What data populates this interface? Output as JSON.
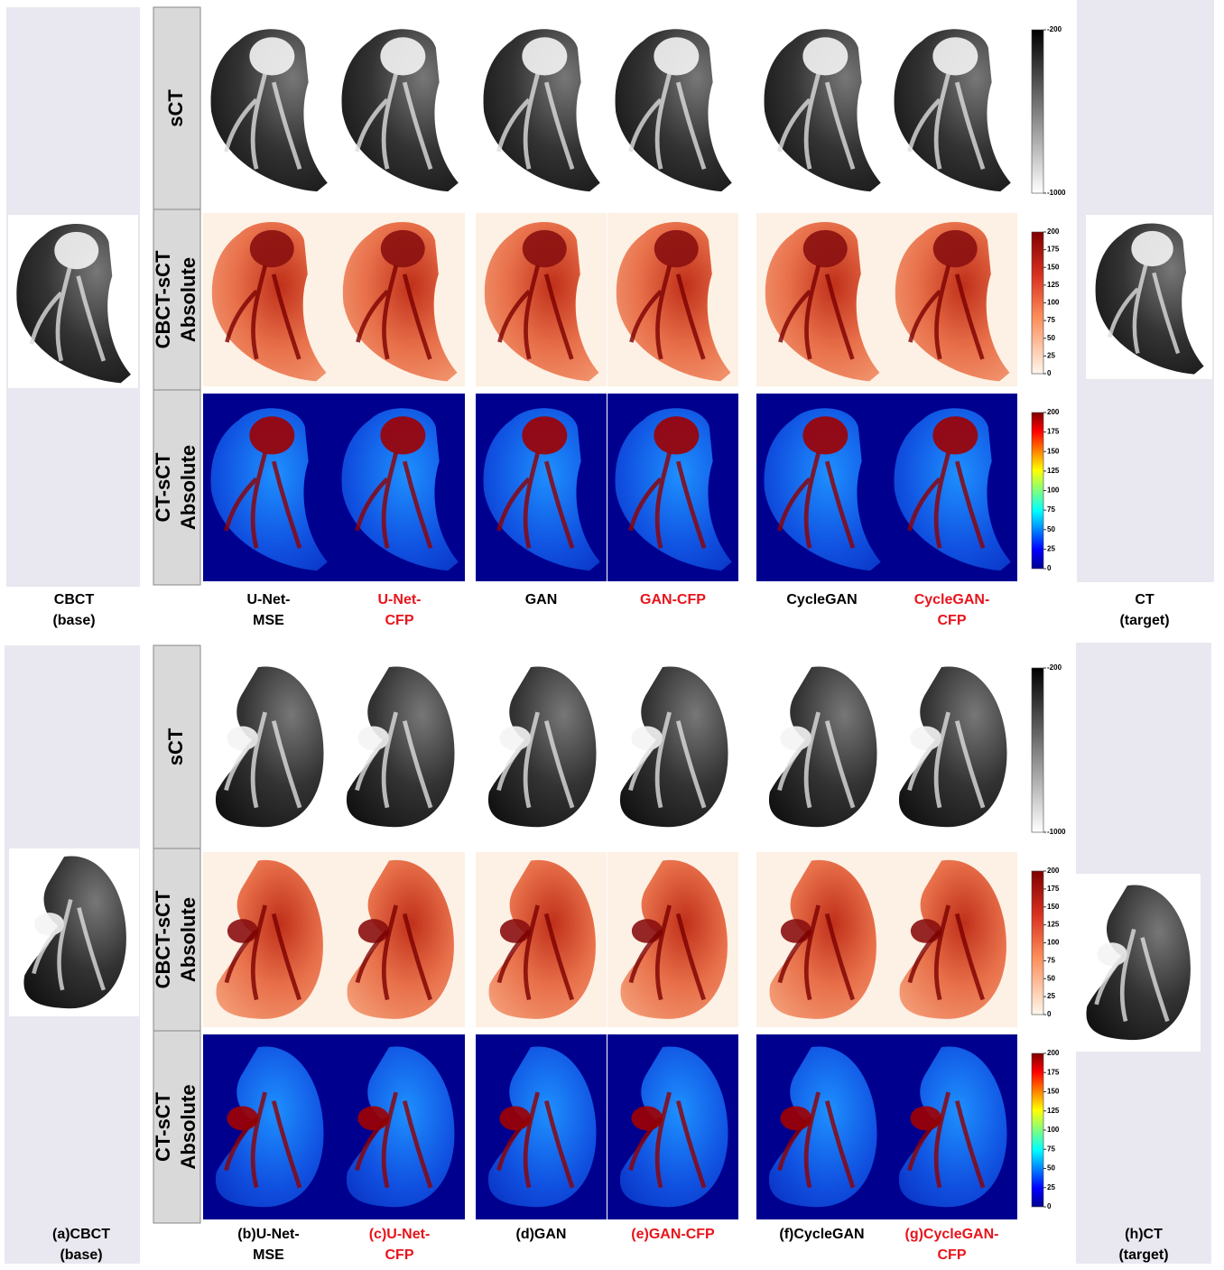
{
  "panels": [
    {
      "base": [
        "CBCT",
        "(base)"
      ],
      "target": [
        "CT",
        "(target)"
      ],
      "rows": [
        [
          "sCT"
        ],
        [
          "CBCT-sCT",
          "Absolute"
        ],
        [
          "CT-sCT",
          "Absolute"
        ]
      ],
      "methods": [
        {
          "lines": [
            "U-Net-",
            "MSE"
          ],
          "color": "#000000"
        },
        {
          "lines": [
            "U-Net-",
            "CFP"
          ],
          "color": "#e8141c"
        },
        {
          "lines": [
            "GAN"
          ],
          "color": "#000000"
        },
        {
          "lines": [
            "GAN-CFP"
          ],
          "color": "#e8141c"
        },
        {
          "lines": [
            "CycleGAN"
          ],
          "color": "#000000"
        },
        {
          "lines": [
            "CycleGAN-",
            "CFP"
          ],
          "color": "#e8141c"
        }
      ],
      "colorbars": [
        [
          -200,
          -1000
        ],
        [
          200,
          175,
          150,
          125,
          100,
          75,
          50,
          25,
          0
        ],
        [
          200,
          175,
          150,
          125,
          100,
          75,
          50,
          25,
          0
        ]
      ]
    },
    {
      "base": [
        "(a)CBCT",
        "(base)"
      ],
      "target": [
        "(h)CT",
        "(target)"
      ],
      "rows": [
        [
          "sCT"
        ],
        [
          "CBCT-sCT",
          "Absolute"
        ],
        [
          "CT-sCT",
          "Absolute"
        ]
      ],
      "methods": [
        {
          "lines": [
            "(b)U-Net-",
            "MSE"
          ],
          "color": "#000000"
        },
        {
          "lines": [
            "(c)U-Net-",
            "CFP"
          ],
          "color": "#e8141c"
        },
        {
          "lines": [
            "(d)GAN"
          ],
          "color": "#000000"
        },
        {
          "lines": [
            "(e)GAN-CFP"
          ],
          "color": "#e8141c"
        },
        {
          "lines": [
            "(f)CycleGAN"
          ],
          "color": "#000000"
        },
        {
          "lines": [
            "(g)CycleGAN-",
            "CFP"
          ],
          "color": "#e8141c"
        }
      ],
      "colorbars": [
        [
          -200,
          -1000
        ],
        [
          200,
          175,
          150,
          125,
          100,
          75,
          50,
          25,
          0
        ],
        [
          200,
          175,
          150,
          125,
          100,
          75,
          50,
          25,
          0
        ]
      ]
    }
  ]
}
